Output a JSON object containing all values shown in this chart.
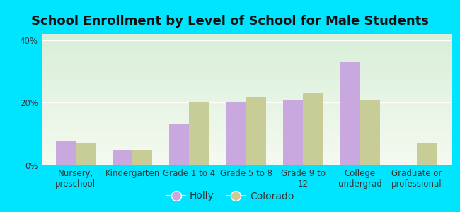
{
  "title": "School Enrollment by Level of School for Male Students",
  "categories": [
    "Nursery,\npreschool",
    "Kindergarten",
    "Grade 1 to 4",
    "Grade 5 to 8",
    "Grade 9 to\n12",
    "College\nundergrad",
    "Graduate or\nprofessional"
  ],
  "holly_values": [
    8,
    5,
    13,
    20,
    21,
    33,
    0
  ],
  "colorado_values": [
    7,
    5,
    20,
    22,
    23,
    21,
    7
  ],
  "holly_color": "#c9a8e0",
  "colorado_color": "#c8cc96",
  "background_outer": "#00e5ff",
  "background_inner": "#e8f5e4",
  "ylim": [
    0,
    42
  ],
  "yticks": [
    0,
    20,
    40
  ],
  "ytick_labels": [
    "0%",
    "20%",
    "40%"
  ],
  "legend_labels": [
    "Holly",
    "Colorado"
  ],
  "bar_width": 0.35,
  "title_fontsize": 13,
  "tick_fontsize": 8.5,
  "legend_fontsize": 10
}
